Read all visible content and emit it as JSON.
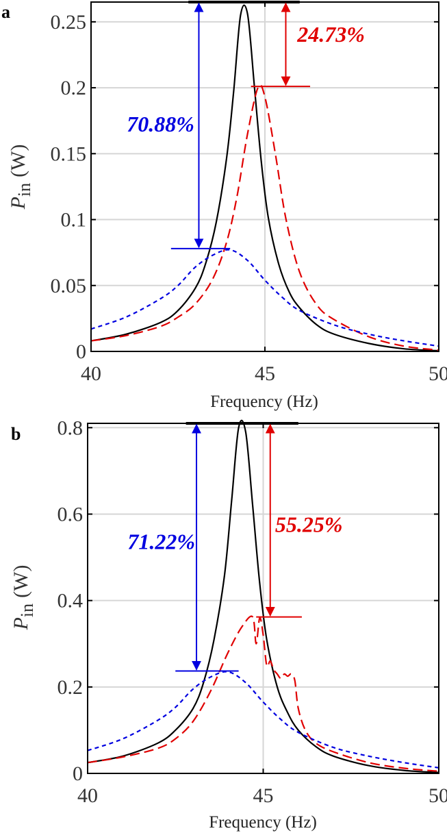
{
  "chart_data": [
    {
      "type": "line",
      "panel_label": "a",
      "xlabel": "Frequency (Hz)",
      "ylabel_main": "P",
      "ylabel_sub": "in",
      "ylabel_unit": "(W)",
      "xlim": [
        40,
        50
      ],
      "ylim": [
        0,
        0.265
      ],
      "xticks": [
        40,
        45,
        50
      ],
      "xtick_labels": [
        "40",
        "45",
        "50"
      ],
      "yticks": [
        0,
        0.05,
        0.1,
        0.15,
        0.2,
        0.25
      ],
      "ytick_labels": [
        "0",
        "0.05",
        "0.1",
        "0.15",
        "0.2",
        "0.25"
      ],
      "grid": true,
      "legend": "none",
      "series": [
        {
          "style": "solid",
          "color": "#000000",
          "x": [
            40,
            41,
            42,
            42.5,
            43,
            43.3,
            43.6,
            43.9,
            44.1,
            44.3,
            44.5,
            44.7,
            44.9,
            45.1,
            45.4,
            45.7,
            46,
            46.5,
            47,
            48,
            49,
            50
          ],
          "y": [
            0.008,
            0.013,
            0.022,
            0.031,
            0.048,
            0.067,
            0.098,
            0.147,
            0.197,
            0.255,
            0.256,
            0.2,
            0.143,
            0.101,
            0.066,
            0.045,
            0.033,
            0.02,
            0.013,
            0.006,
            0.002,
            0.0005
          ]
        },
        {
          "style": "longdash",
          "color": "#e00000",
          "x": [
            40,
            41,
            42,
            42.5,
            43,
            43.5,
            43.9,
            44.2,
            44.5,
            44.8,
            45,
            45.3,
            45.6,
            46,
            46.5,
            47,
            48,
            49,
            50
          ],
          "y": [
            0.008,
            0.012,
            0.019,
            0.026,
            0.036,
            0.055,
            0.083,
            0.118,
            0.165,
            0.2,
            0.193,
            0.15,
            0.101,
            0.06,
            0.035,
            0.024,
            0.011,
            0.004,
            0.001
          ]
        },
        {
          "style": "shortdash",
          "color": "#0000e0",
          "x": [
            40,
            41,
            42,
            42.5,
            43,
            43.5,
            44,
            44.5,
            45,
            45.5,
            46,
            47,
            48,
            49,
            50
          ],
          "y": [
            0.017,
            0.026,
            0.04,
            0.05,
            0.064,
            0.073,
            0.077,
            0.069,
            0.054,
            0.041,
            0.031,
            0.02,
            0.013,
            0.008,
            0.004
          ]
        }
      ],
      "peak_bar": {
        "x": [
          42.8,
          46.0
        ],
        "y": 0.265
      },
      "markers": [
        {
          "color": "#0000e0",
          "y": 0.078,
          "x": [
            42.3,
            44.0
          ]
        },
        {
          "color": "#e00000",
          "y": 0.201,
          "x": [
            44.6,
            46.3
          ]
        }
      ],
      "arrows": [
        {
          "color": "#0000e0",
          "x": 43.1,
          "y_top": 0.265,
          "y_bottom": 0.078
        },
        {
          "color": "#e00000",
          "x": 45.6,
          "y_top": 0.265,
          "y_bottom": 0.201
        }
      ],
      "annotations": [
        {
          "text": "70.88%",
          "color": "#0000e0",
          "x": 42.0,
          "y": 0.172
        },
        {
          "text": "24.73%",
          "color": "#e00000",
          "x": 46.9,
          "y": 0.24
        }
      ]
    },
    {
      "type": "line",
      "panel_label": "b",
      "xlabel": "Frequency (Hz)",
      "ylabel_main": "P",
      "ylabel_sub": "in",
      "ylabel_unit": "(W)",
      "xlim": [
        40,
        50
      ],
      "ylim": [
        0,
        0.81
      ],
      "xticks": [
        40,
        45,
        50
      ],
      "xtick_labels": [
        "40",
        "45",
        "50"
      ],
      "yticks": [
        0,
        0.2,
        0.4,
        0.6,
        0.8
      ],
      "ytick_labels": [
        "0",
        "0.2",
        "0.4",
        "0.6",
        "0.8"
      ],
      "grid": true,
      "legend": "none",
      "series": [
        {
          "style": "solid",
          "color": "#000000",
          "x": [
            40,
            41,
            42,
            42.5,
            43,
            43.3,
            43.6,
            43.9,
            44.1,
            44.3,
            44.5,
            44.7,
            44.9,
            45.1,
            45.4,
            45.7,
            46,
            46.5,
            47,
            48,
            49,
            50
          ],
          "y": [
            0.025,
            0.04,
            0.07,
            0.1,
            0.15,
            0.21,
            0.31,
            0.46,
            0.63,
            0.8,
            0.79,
            0.62,
            0.44,
            0.31,
            0.2,
            0.14,
            0.1,
            0.062,
            0.04,
            0.018,
            0.007,
            0.002
          ]
        },
        {
          "style": "longdash",
          "color": "#e00000",
          "x": [
            40,
            41,
            42,
            42.5,
            43,
            43.5,
            44,
            44.4,
            44.7,
            44.8,
            44.9,
            45.0,
            45.1,
            45.2,
            45.3,
            45.4,
            45.5,
            45.6,
            45.7,
            45.8,
            45.9,
            46.0,
            46.2,
            46.5,
            47,
            48,
            49,
            50
          ],
          "y": [
            0.025,
            0.038,
            0.058,
            0.08,
            0.12,
            0.19,
            0.28,
            0.34,
            0.362,
            0.3,
            0.36,
            0.32,
            0.25,
            0.26,
            0.24,
            0.23,
            0.22,
            0.23,
            0.225,
            0.23,
            0.215,
            0.15,
            0.1,
            0.07,
            0.05,
            0.025,
            0.012,
            0.005
          ]
        },
        {
          "style": "shortdash",
          "color": "#0000e0",
          "x": [
            40,
            41,
            42,
            42.5,
            43,
            43.5,
            44,
            44.5,
            45,
            45.5,
            46,
            47,
            48,
            49,
            50
          ],
          "y": [
            0.053,
            0.08,
            0.123,
            0.153,
            0.195,
            0.223,
            0.235,
            0.21,
            0.165,
            0.125,
            0.095,
            0.06,
            0.04,
            0.025,
            0.013
          ]
        }
      ],
      "peak_bar": {
        "x": [
          42.8,
          46.0
        ],
        "y": 0.81
      },
      "markers": [
        {
          "color": "#0000e0",
          "y": 0.237,
          "x": [
            42.5,
            44.3
          ]
        },
        {
          "color": "#e00000",
          "y": 0.362,
          "x": [
            44.8,
            46.1
          ]
        }
      ],
      "arrows": [
        {
          "color": "#0000e0",
          "x": 43.1,
          "y_top": 0.81,
          "y_bottom": 0.237
        },
        {
          "color": "#e00000",
          "x": 45.2,
          "y_top": 0.81,
          "y_bottom": 0.362
        }
      ],
      "annotations": [
        {
          "text": "71.22%",
          "color": "#0000e0",
          "x": 42.1,
          "y": 0.535
        },
        {
          "text": "55.25%",
          "color": "#e00000",
          "x": 46.3,
          "y": 0.575
        }
      ]
    }
  ]
}
